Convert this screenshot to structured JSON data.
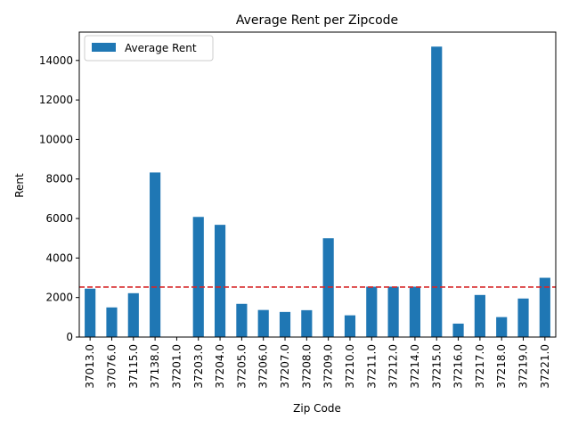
{
  "chart_data": {
    "type": "bar",
    "title": "Average Rent per Zipcode",
    "xlabel": "Zip Code",
    "ylabel": "Rent",
    "categories": [
      "37013.0",
      "37076.0",
      "37115.0",
      "37138.0",
      "37201.0",
      "37203.0",
      "37204.0",
      "37205.0",
      "37206.0",
      "37207.0",
      "37208.0",
      "37209.0",
      "37210.0",
      "37211.0",
      "37212.0",
      "37214.0",
      "37215.0",
      "37216.0",
      "37217.0",
      "37218.0",
      "37219.0",
      "37221.0"
    ],
    "series": [
      {
        "name": "Average Rent",
        "color": "#1f77b4",
        "values": [
          2450,
          1500,
          2220,
          8330,
          0,
          6080,
          5680,
          1680,
          1370,
          1270,
          1360,
          5000,
          1100,
          2550,
          2550,
          2550,
          14700,
          680,
          2130,
          1010,
          1950,
          3000
        ]
      }
    ],
    "reference_line": {
      "value": 2530,
      "color": "#d62728",
      "style": "dashed"
    },
    "ylim": [
      0,
      15435
    ],
    "yticks": [
      0,
      2000,
      4000,
      6000,
      8000,
      10000,
      12000,
      14000
    ],
    "legend": "top-left",
    "grid": false
  }
}
